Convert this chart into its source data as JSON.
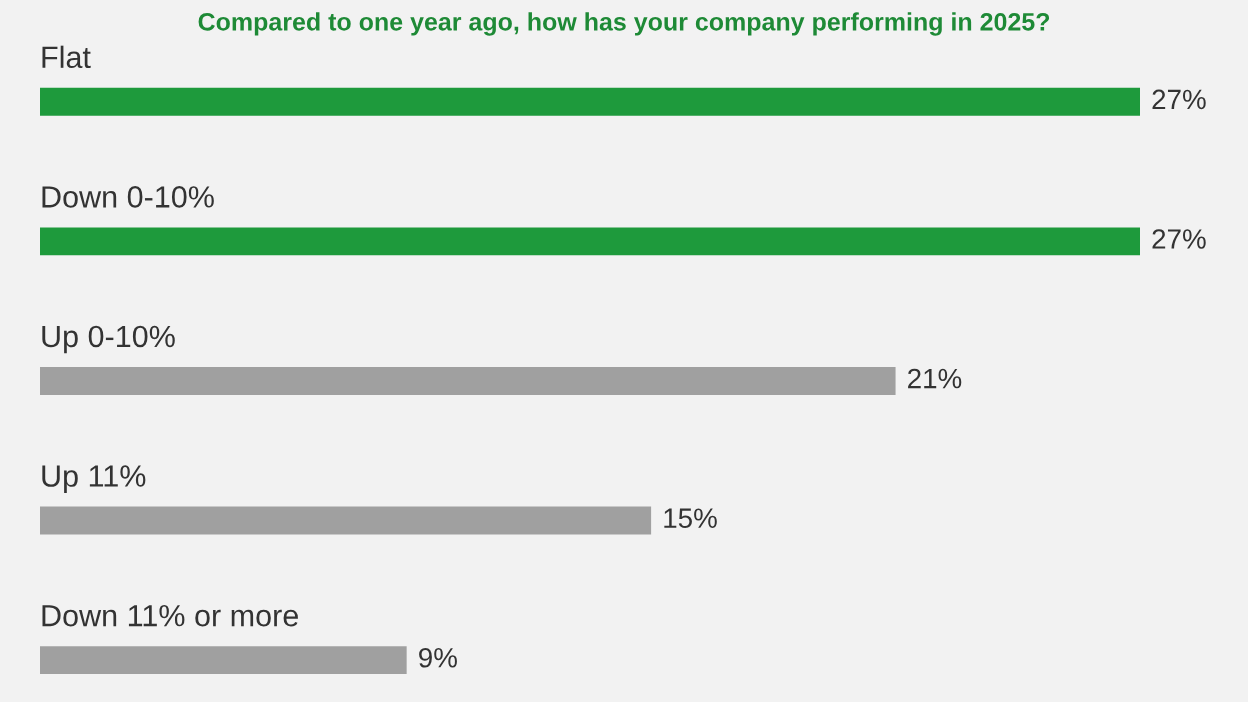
{
  "chart_data": {
    "type": "bar",
    "orientation": "horizontal",
    "title": "Compared to one year ago, how has your company performing in 2025?",
    "categories": [
      "Flat",
      "Down 0-10%",
      "Up 0-10%",
      "Up 11%",
      "Down 11% or more"
    ],
    "values": [
      27,
      27,
      21,
      15,
      9
    ],
    "colors": [
      "#1e9a3c",
      "#1e9a3c",
      "#a0a0a0",
      "#a0a0a0",
      "#a0a0a0"
    ],
    "value_labels": [
      "27%",
      "27%",
      "21%",
      "15%",
      "9%"
    ]
  }
}
